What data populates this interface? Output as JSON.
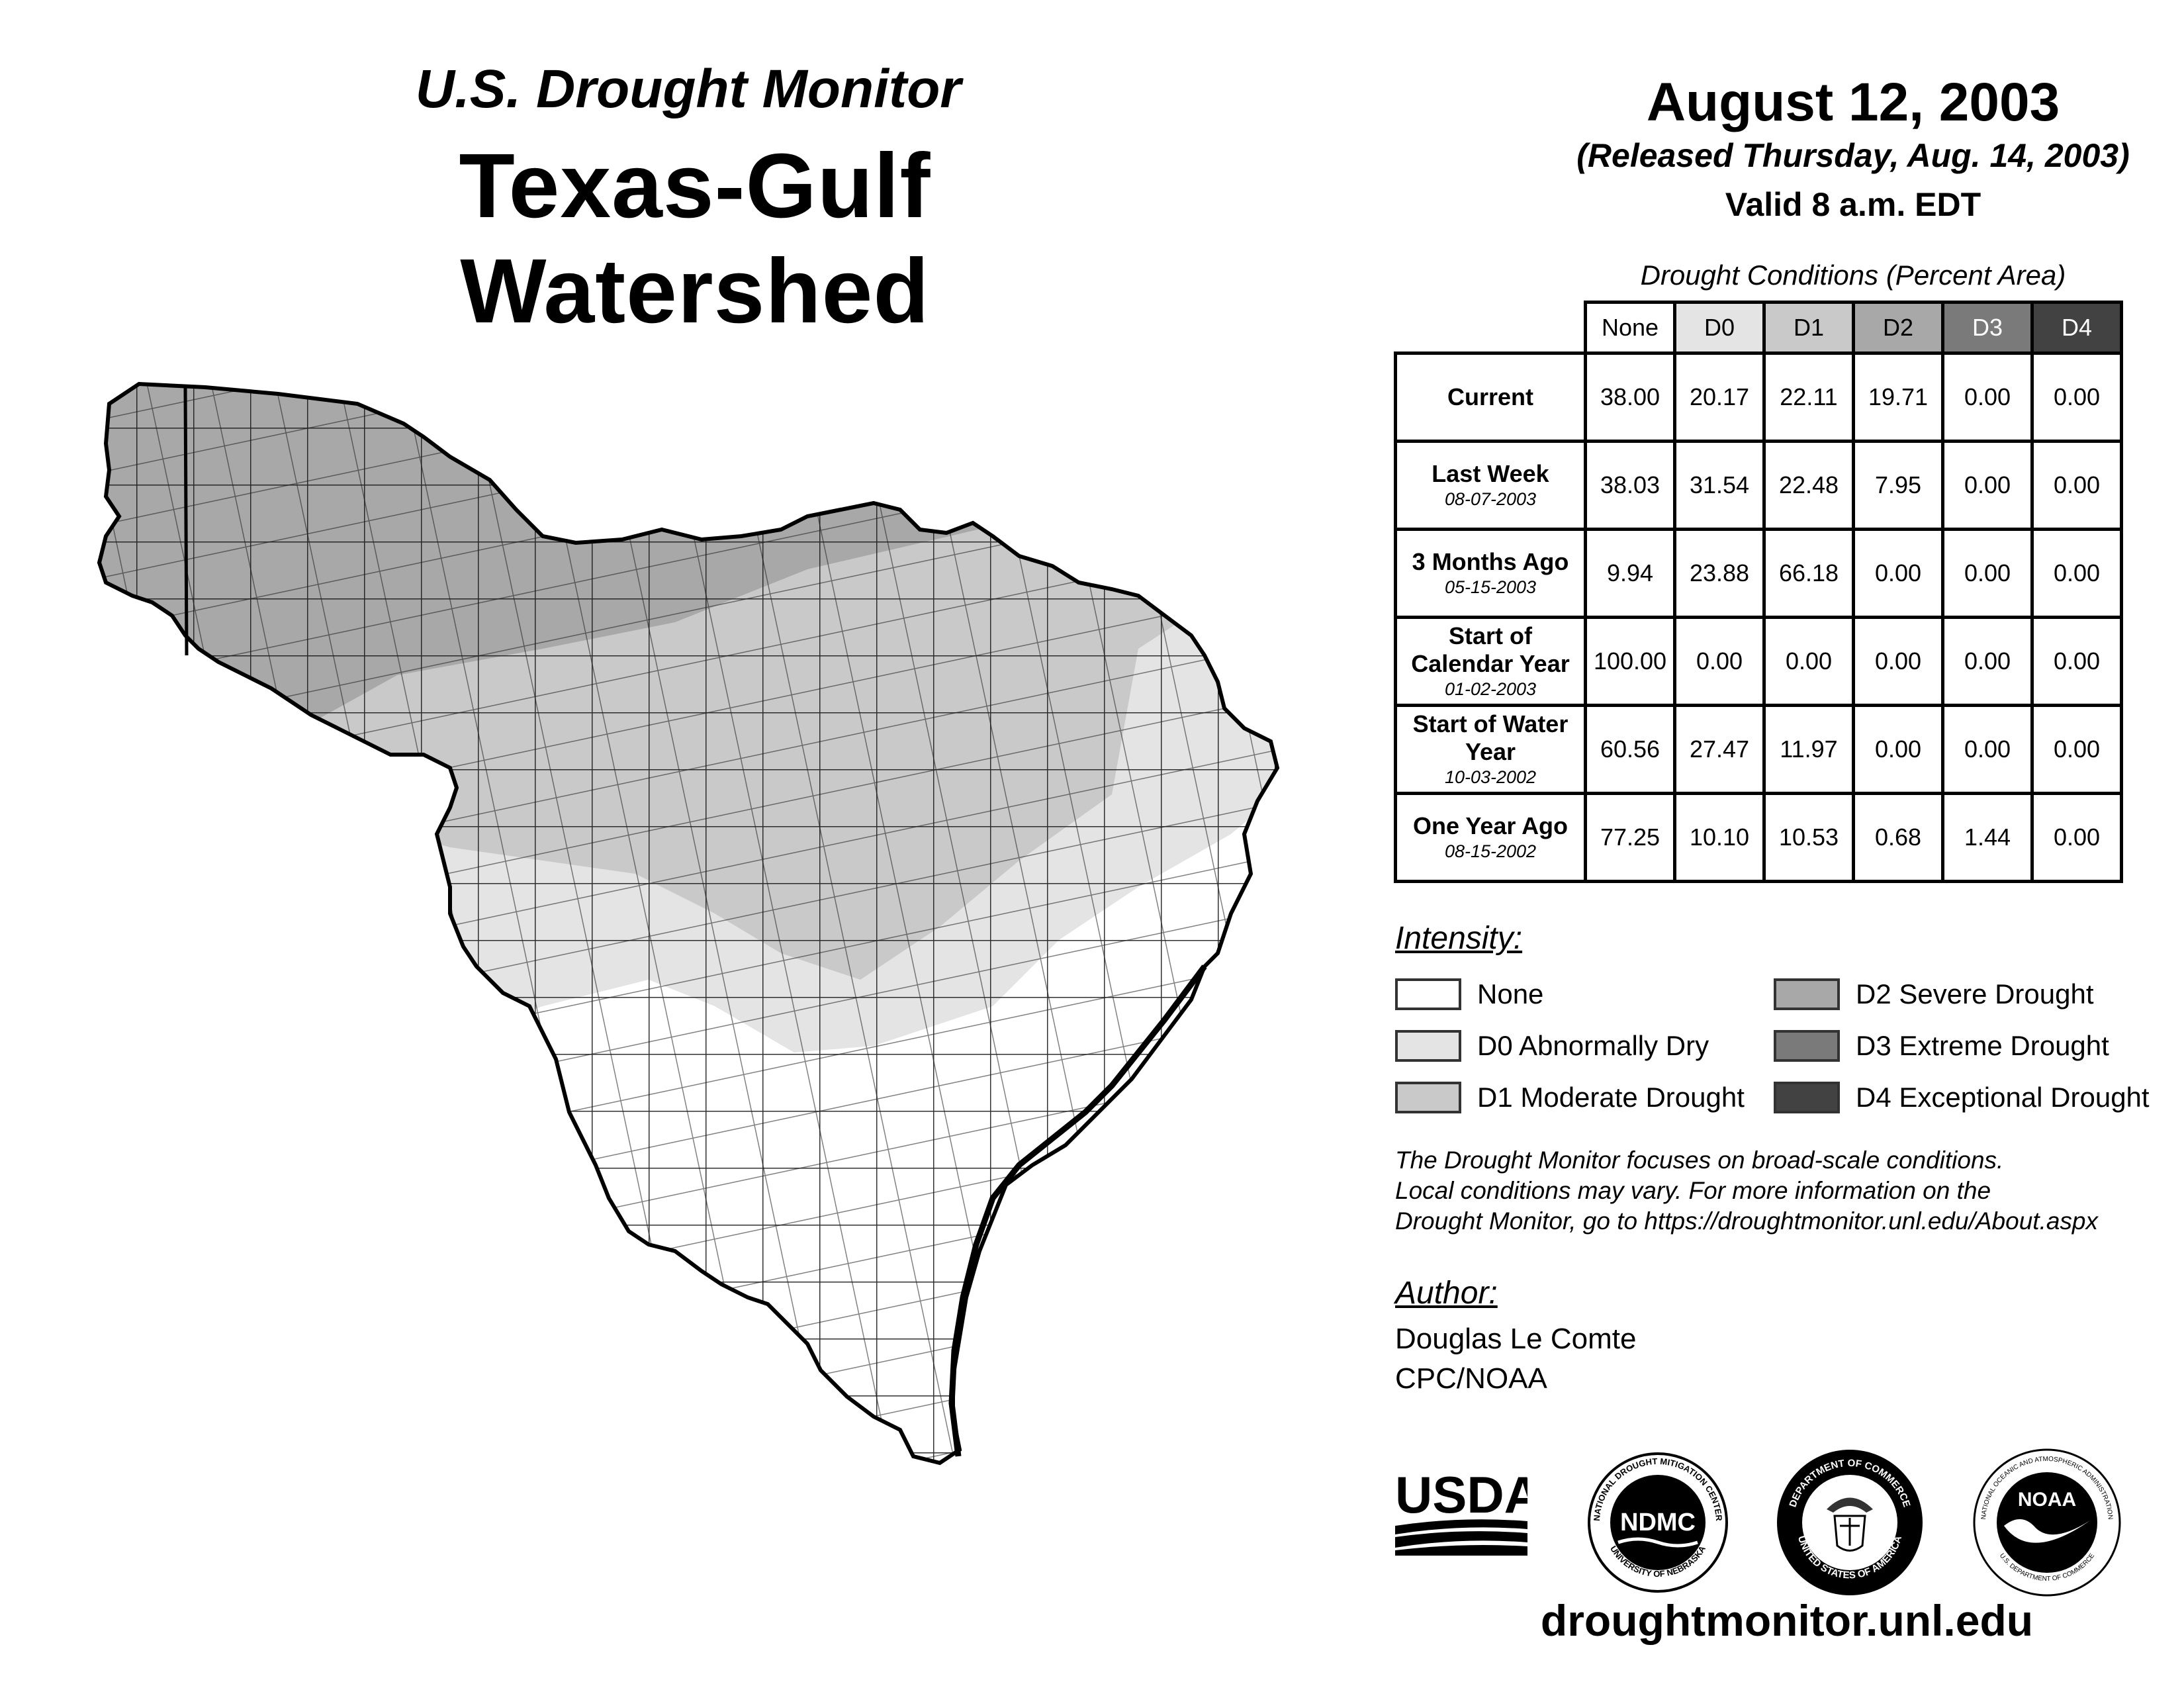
{
  "header": {
    "subtitle": "U.S. Drought Monitor",
    "title": "Texas-Gulf Watershed",
    "date": "August 12, 2003",
    "released": "(Released Thursday, Aug. 14, 2003)",
    "valid": "Valid 8 a.m. EDT"
  },
  "table": {
    "caption": "Drought Conditions (Percent Area)",
    "columns": [
      "None",
      "D0",
      "D1",
      "D2",
      "D3",
      "D4"
    ],
    "rows": [
      {
        "label": "Current",
        "date": "",
        "values": [
          "38.00",
          "20.17",
          "22.11",
          "19.71",
          "0.00",
          "0.00"
        ]
      },
      {
        "label": "Last Week",
        "date": "08-07-2003",
        "values": [
          "38.03",
          "31.54",
          "22.48",
          "7.95",
          "0.00",
          "0.00"
        ]
      },
      {
        "label": "3 Months Ago",
        "date": "05-15-2003",
        "values": [
          "9.94",
          "23.88",
          "66.18",
          "0.00",
          "0.00",
          "0.00"
        ]
      },
      {
        "label": "Start of Calendar Year",
        "date": "01-02-2003",
        "values": [
          "100.00",
          "0.00",
          "0.00",
          "0.00",
          "0.00",
          "0.00"
        ]
      },
      {
        "label": "Start of Water Year",
        "date": "10-03-2002",
        "values": [
          "60.56",
          "27.47",
          "11.97",
          "0.00",
          "0.00",
          "0.00"
        ]
      },
      {
        "label": "One Year Ago",
        "date": "08-15-2002",
        "values": [
          "77.25",
          "10.10",
          "10.53",
          "0.68",
          "1.44",
          "0.00"
        ]
      }
    ]
  },
  "legend": {
    "title": "Intensity:",
    "items": [
      {
        "label": "None",
        "color": "#ffffff"
      },
      {
        "label": "D0 Abnormally Dry",
        "color": "#e4e4e4"
      },
      {
        "label": "D1 Moderate Drought",
        "color": "#c9c9c9"
      },
      {
        "label": "D2 Severe Drought",
        "color": "#a8a8a8"
      },
      {
        "label": "D3 Extreme Drought",
        "color": "#7a7a7a"
      },
      {
        "label": "D4 Exceptional Drought",
        "color": "#424242"
      }
    ]
  },
  "note": {
    "line1": "The Drought Monitor focuses on broad-scale conditions.",
    "line2": "Local conditions may vary. For more information on the",
    "line3": "Drought Monitor, go to https://droughtmonitor.unl.edu/About.aspx"
  },
  "author": {
    "title": "Author:",
    "name": "Douglas Le Comte",
    "org": "CPC/NOAA"
  },
  "logos": {
    "usda": "USDA",
    "ndmc": "NDMC",
    "ndmc_ring_top": "NATIONAL DROUGHT MITIGATION CENTER",
    "ndmc_ring_bottom": "UNIVERSITY OF NEBRASKA",
    "doc_ring_top": "DEPARTMENT OF COMMERCE",
    "doc_ring_bottom": "UNITED STATES OF AMERICA",
    "noaa": "NOAA",
    "noaa_ring_top": "NATIONAL OCEANIC AND ATMOSPHERIC ADMINISTRATION",
    "noaa_ring_bottom": "U.S. DEPARTMENT OF COMMERCE"
  },
  "footer": {
    "url": "droughtmonitor.unl.edu"
  }
}
